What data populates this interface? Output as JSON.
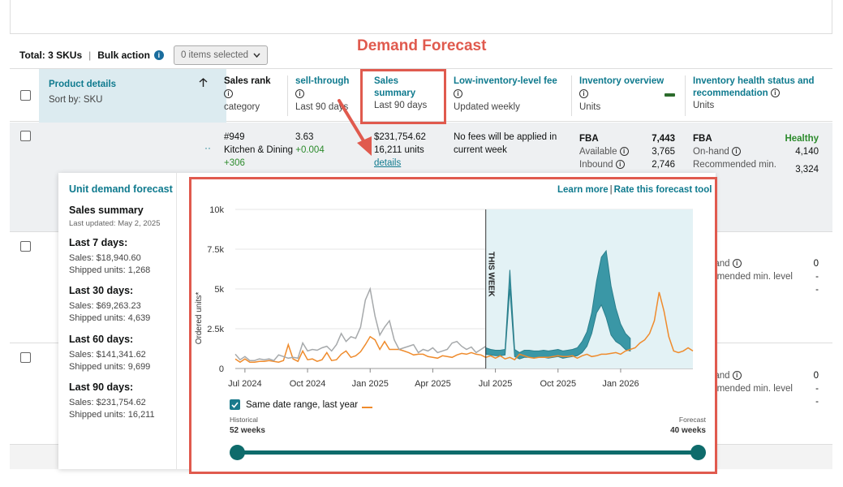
{
  "annotation": {
    "title": "Demand Forecast"
  },
  "toolbar": {
    "total": "Total: 3 SKUs",
    "bulk_action": "Bulk action",
    "selected": "0 items selected"
  },
  "columns": {
    "product_details": {
      "title": "Product details",
      "sort": "Sort by: SKU"
    },
    "sales_rank": {
      "title": "Sales rank",
      "sub": "category"
    },
    "sell_through": {
      "title": "sell-through",
      "sub": "Last 90 days"
    },
    "sales_summary": {
      "title1": "Sales",
      "title2": "summary",
      "sub": "Last 90 days"
    },
    "low_inventory": {
      "title": "Low-inventory-level fee",
      "sub": "Updated weekly"
    },
    "inventory_overview": {
      "title": "Inventory overview",
      "sub": "Units"
    },
    "inventory_health": {
      "title1": "Inventory health status and",
      "title2": "recommendation",
      "sub": "Units"
    }
  },
  "row1": {
    "rank": "#949",
    "rank_category": "Kitchen & Dining",
    "rank_change": "+0.004",
    "rank_delta": "+306",
    "sell_through": "3.63",
    "sales": "$231,754.62",
    "units": "16,211 units",
    "details_link": "details",
    "fee_text1": "No fees will be applied in",
    "fee_text2": "current week",
    "fba_label": "FBA",
    "fba_value": "7,443",
    "available_label": "Available",
    "available_value": "3,765",
    "inbound_label": "Inbound",
    "inbound_value": "2,746",
    "health_fba": "FBA",
    "health_status": "Healthy",
    "onhand_label": "On-hand",
    "onhand_value": "4,140",
    "rec_min_label": "Recommended min.",
    "rec_min_value": "3,324"
  },
  "row2": {
    "onhand_label": "hand",
    "onhand_value": "0",
    "rec_label": "mmended min. level",
    "rec_value": "-",
    "dash2": "-"
  },
  "row3": {
    "onhand_label": "hand",
    "onhand_value": "0",
    "rec_label": "mmended min. level",
    "rec_value": "-",
    "dash2": "-"
  },
  "popup": {
    "title": "Unit demand forecast",
    "summary_title": "Sales summary",
    "last_updated": "Last updated: May 2, 2025",
    "periods": [
      {
        "label": "Last 7 days:",
        "sales": "Sales: $18,940.60",
        "units": "Shipped units: 1,268"
      },
      {
        "label": "Last 30 days:",
        "sales": "Sales: $69,263.23",
        "units": "Shipped units: 4,639"
      },
      {
        "label": "Last 60 days:",
        "sales": "Sales: $141,341.62",
        "units": "Shipped units: 9,699"
      },
      {
        "label": "Last 90 days:",
        "sales": "Sales: $231,754.62",
        "units": "Shipped units: 16,211"
      }
    ],
    "learn_more": "Learn more",
    "rate_tool": "Rate this forecast tool",
    "legend_checkbox": "Same date range, last year",
    "historical_label": "Historical",
    "historical_value": "52 weeks",
    "forecast_label": "Forecast",
    "forecast_value": "40 weeks"
  },
  "colors": {
    "accent": "#0f7a8e",
    "annotation": "#e05a4e",
    "forecast_band": "#3a97a6",
    "last_year": "#ef8b2c",
    "current": "#a6a9ab"
  },
  "chart_data": {
    "type": "line",
    "ylabel": "Ordered units*",
    "y_ticks": [
      "0",
      "2.5k",
      "5k",
      "7.5k",
      "10k"
    ],
    "ylim": [
      0,
      10000
    ],
    "x_ticks": [
      "Jul 2024",
      "Oct 2024",
      "Jan 2025",
      "Apr 2025",
      "Jul 2025",
      "Oct 2025",
      "Jan 2026"
    ],
    "this_week_label": "THIS WEEK",
    "this_week_index": 52,
    "series": [
      {
        "name": "Historical",
        "role": "current",
        "values": [
          900,
          550,
          750,
          500,
          500,
          600,
          550,
          600,
          500,
          850,
          750,
          650,
          700,
          650,
          1600,
          1100,
          1200,
          1150,
          1300,
          1400,
          1100,
          1500,
          2200,
          1700,
          2000,
          1900,
          2600,
          4300,
          5000,
          3300,
          2100,
          2600,
          3000,
          1800,
          1200,
          1300,
          1400,
          1500,
          1000,
          1200,
          1100,
          1300,
          1000,
          1100,
          1200,
          1600,
          1700,
          1400,
          1200,
          1350,
          1000,
          1200,
          1400
        ]
      },
      {
        "name": "Same date range, last year",
        "role": "last_year",
        "values": [
          600,
          400,
          600,
          400,
          400,
          450,
          450,
          500,
          450,
          400,
          500,
          1500,
          600,
          450,
          1100,
          550,
          600,
          450,
          550,
          1000,
          500,
          550,
          900,
          1100,
          700,
          800,
          1050,
          1500,
          2000,
          1800,
          1200,
          1700,
          1200,
          1200,
          1200,
          1100,
          1000,
          850,
          900,
          900,
          750,
          700,
          650,
          800,
          750,
          700,
          850,
          950,
          900,
          1000,
          900,
          850,
          700,
          800,
          650,
          800,
          600,
          700,
          550,
          900,
          800,
          700,
          650,
          700,
          700,
          700,
          750,
          800,
          750,
          750,
          800,
          650,
          800,
          900,
          750,
          800,
          900,
          900,
          950,
          1000,
          900,
          1100,
          1200,
          1300,
          1600,
          1800,
          2200,
          3000,
          4800,
          3600,
          2000,
          1100,
          1000,
          1100,
          1300,
          1100
        ]
      },
      {
        "name": "Forecast low",
        "role": "band_low",
        "values": [
          900,
          850,
          800,
          800,
          850,
          5000,
          750,
          600,
          700,
          700,
          650,
          700,
          700,
          650,
          700,
          750,
          650,
          700,
          750,
          800,
          1000,
          1400,
          2200,
          3500,
          4000,
          3200,
          2100,
          1700,
          1500,
          1200,
          1100
        ]
      },
      {
        "name": "Forecast high",
        "role": "band_high",
        "values": [
          1300,
          1200,
          1150,
          1150,
          1200,
          6200,
          1200,
          1000,
          1150,
          1150,
          1100,
          1100,
          1150,
          1100,
          1150,
          1200,
          1100,
          1150,
          1200,
          1300,
          1700,
          2300,
          3500,
          5500,
          7000,
          7400,
          5200,
          3800,
          2800,
          2200,
          1900
        ]
      }
    ]
  }
}
